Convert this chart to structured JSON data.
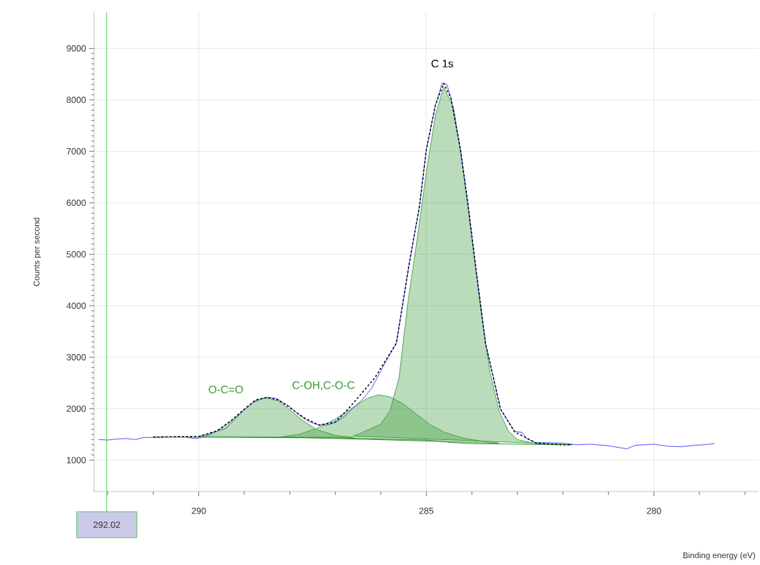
{
  "chart_data": {
    "type": "line",
    "xlabel": "Binding energy (eV)",
    "ylabel": "Counts per second",
    "xlim": [
      292.3,
      277.7
    ],
    "ylim": [
      390,
      9700
    ],
    "xticks": [
      290,
      285,
      280,
      {
        "value": 292,
        "label": null
      },
      {
        "value": 291,
        "label": null
      },
      {
        "value": 289,
        "label": null
      },
      {
        "value": 288,
        "label": null
      },
      {
        "value": 287,
        "label": null
      },
      {
        "value": 286,
        "label": null
      },
      {
        "value": 284,
        "label": null
      },
      {
        "value": 283,
        "label": null
      },
      {
        "value": 282,
        "label": null
      },
      {
        "value": 281,
        "label": null
      },
      {
        "value": 279,
        "label": null
      },
      {
        "value": 278,
        "label": null
      }
    ],
    "yticks": [
      1000,
      2000,
      3000,
      4000,
      5000,
      6000,
      7000,
      8000,
      9000
    ],
    "grid": true,
    "ref_lines": [
      {
        "axis": "x",
        "value": 292.02,
        "label": "292.02",
        "color": "#4cd14c"
      }
    ],
    "annotations": [
      "C 1s"
    ],
    "series": [
      {
        "color": "#4a4aff",
        "x": [
          292.2,
          292.0,
          291.8,
          291.6,
          291.4,
          291.2,
          291.0,
          290.6,
          290.3,
          290.1,
          290.0,
          289.8,
          289.6,
          289.4,
          289.0,
          288.8,
          288.6,
          288.5,
          288.3,
          288.0,
          287.8,
          287.6,
          287.4,
          287.2,
          287.0,
          286.8,
          286.6,
          286.4,
          286.2,
          285.9,
          285.66,
          285.38,
          285.15,
          285.0,
          284.8,
          284.65,
          284.55,
          284.46,
          284.25,
          284.08,
          283.92,
          283.7,
          283.37,
          283.06,
          282.9,
          282.8,
          282.6,
          282.3,
          282.0,
          281.7,
          281.4,
          281.0,
          280.6,
          280.4,
          280.0,
          279.7,
          279.4,
          279.1,
          278.9,
          278.67
        ],
        "values": [
          1400,
          1390,
          1410,
          1420,
          1400,
          1440,
          1440,
          1450,
          1450,
          1420,
          1430,
          1480,
          1560,
          1620,
          1980,
          2120,
          2200,
          2220,
          2200,
          2040,
          1880,
          1760,
          1690,
          1680,
          1730,
          1850,
          2020,
          2180,
          2400,
          2900,
          3270,
          4790,
          5940,
          7030,
          7900,
          8330,
          8300,
          8040,
          7030,
          5940,
          4790,
          3270,
          1990,
          1560,
          1540,
          1420,
          1340,
          1340,
          1330,
          1300,
          1310,
          1280,
          1220,
          1290,
          1310,
          1270,
          1260,
          1290,
          1300,
          1320
        ]
      },
      {
        "color": "#2d8f2d",
        "x": [
          291.0,
          289.0,
          287.0,
          286.0,
          285.0,
          284.4,
          284.0,
          283.0,
          282.0,
          281.8
        ],
        "values": [
          1450,
          1440,
          1430,
          1410,
          1390,
          1340,
          1320,
          1310,
          1300,
          1300
        ]
      },
      {
        "type": "area",
        "name": "O-C=O",
        "color": "#3a9a3a",
        "x": [
          290.0,
          289.6,
          289.3,
          289.0,
          288.75,
          288.5,
          288.25,
          288.0,
          287.7,
          287.4,
          287.0,
          286.6
        ],
        "values": [
          1460,
          1560,
          1750,
          1980,
          2160,
          2210,
          2150,
          1980,
          1760,
          1590,
          1480,
          1440
        ]
      },
      {
        "type": "area",
        "name": "C-OH,C-O-C",
        "color": "#3a9a3a",
        "x": [
          288.2,
          287.8,
          287.4,
          287.0,
          286.6,
          286.3,
          286.05,
          285.8,
          285.5,
          285.2,
          284.9,
          284.6,
          284.2,
          283.8,
          283.4
        ],
        "values": [
          1450,
          1500,
          1620,
          1800,
          2030,
          2200,
          2270,
          2230,
          2090,
          1880,
          1680,
          1540,
          1430,
          1370,
          1330
        ]
      },
      {
        "type": "area",
        "color": "#3a9a3a",
        "x": [
          286.6,
          286.4,
          286.0,
          285.8,
          285.6,
          285.4,
          285.2,
          285.0,
          284.8,
          284.62,
          284.4,
          284.2,
          284.0,
          283.8,
          283.6,
          283.4,
          283.2,
          283.0,
          282.6,
          282.2,
          281.8
        ],
        "values": [
          1470,
          1540,
          1700,
          1960,
          2600,
          4100,
          5300,
          6600,
          7700,
          8250,
          7850,
          6700,
          5300,
          3900,
          2700,
          1950,
          1570,
          1400,
          1320,
          1300,
          1300
        ]
      },
      {
        "color": "#000000",
        "line_style": "dashed",
        "x": [
          291.0,
          290.0,
          289.6,
          289.3,
          289.0,
          288.75,
          288.5,
          288.25,
          288.0,
          287.7,
          287.36,
          287.0,
          286.72,
          286.13,
          285.66,
          285.38,
          285.15,
          285.0,
          284.8,
          284.62,
          284.46,
          284.25,
          284.08,
          283.92,
          283.7,
          283.37,
          283.06,
          282.58,
          282.0,
          281.8
        ],
        "values": [
          1450,
          1460,
          1570,
          1760,
          1990,
          2170,
          2220,
          2170,
          2020,
          1830,
          1680,
          1740,
          1990,
          2600,
          3270,
          4790,
          5940,
          7030,
          7900,
          8320,
          8040,
          7030,
          5940,
          4790,
          3270,
          1990,
          1550,
          1330,
          1300,
          1300
        ]
      }
    ]
  }
}
